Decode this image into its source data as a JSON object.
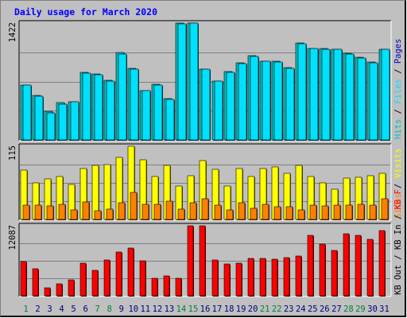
{
  "chart_data": {
    "type": "bar",
    "title": "Daily usage for March 2020",
    "days": [
      "1",
      "2",
      "3",
      "4",
      "5",
      "6",
      "7",
      "8",
      "9",
      "10",
      "11",
      "12",
      "13",
      "14",
      "15",
      "16",
      "17",
      "18",
      "19",
      "20",
      "21",
      "22",
      "23",
      "24",
      "25",
      "26",
      "27",
      "28",
      "29",
      "30",
      "31"
    ],
    "weekend_days": [
      "1",
      "7",
      "8",
      "14",
      "15",
      "21",
      "22",
      "28",
      "29"
    ],
    "panels": [
      {
        "id": "requests",
        "max_label": "1422",
        "ylim": [
          0,
          1422
        ],
        "right_axis": [
          "Pages",
          "/",
          "Files",
          "/",
          "Hits"
        ],
        "series": [
          {
            "name": "Hits",
            "color": "#00c0c0",
            "values": [
              670,
              540,
              350,
              450,
              460,
              820,
              800,
              730,
              1060,
              870,
              600,
              680,
              500,
              1420,
              1420,
              860,
              720,
              830,
              940,
              1030,
              960,
              960,
              880,
              1180,
              1110,
              1110,
              1100,
              1050,
              1010,
              950,
              1100
            ]
          },
          {
            "name": "Files",
            "color": "#00e0ff",
            "values": [
              665,
              530,
              330,
              440,
              460,
              810,
              790,
              720,
              1040,
              865,
              595,
              670,
              490,
              1410,
              1420,
              860,
              715,
              825,
              930,
              1020,
              960,
              950,
              870,
              1170,
              1110,
              1100,
              1100,
              1040,
              1000,
              940,
              1100
            ]
          },
          {
            "name": "Pages",
            "color": "#0000c0",
            "values": [
              0,
              0,
              0,
              0,
              0,
              0,
              0,
              0,
              0,
              0,
              0,
              0,
              0,
              0,
              0,
              0,
              0,
              0,
              0,
              0,
              0,
              0,
              0,
              0,
              0,
              0,
              0,
              0,
              0,
              0,
              0
            ]
          }
        ]
      },
      {
        "id": "visits",
        "max_label": "115",
        "ylim": [
          0,
          115
        ],
        "right_axis": [
          "Visits",
          "/",
          "Sites"
        ],
        "series": [
          {
            "name": "Visits",
            "color": "#ffff00",
            "values": [
              78,
              57,
              64,
              68,
              55,
              80,
              85,
              86,
              97,
              115,
              94,
              68,
              85,
              53,
              69,
              93,
              79,
              52,
              80,
              67,
              80,
              82,
              72,
              85,
              68,
              57,
              48,
              65,
              66,
              69,
              73
            ]
          },
          {
            "name": "Sites",
            "color": "#ff8000",
            "values": [
              22,
              22,
              21,
              24,
              15,
              28,
              14,
              16,
              26,
              42,
              24,
              24,
              29,
              16,
              26,
              33,
              22,
              15,
              26,
              17,
              24,
              20,
              20,
              15,
              23,
              21,
              22,
              23,
              24,
              23,
              32
            ]
          }
        ]
      },
      {
        "id": "kbytes",
        "max_label": "12087",
        "ylim": [
          0,
          12087
        ],
        "right_axis": [
          "KB F",
          "/",
          "KB In",
          "/",
          "KB Out"
        ],
        "series": [
          {
            "name": "KB F",
            "color": "#ff0000",
            "values": [
              5900,
              4700,
              1400,
              2000,
              2800,
              5600,
              4400,
              6200,
              7600,
              8200,
              6000,
              3000,
              3500,
              3000,
              12087,
              12087,
              6200,
              5500,
              5700,
              6400,
              6400,
              6300,
              6600,
              6800,
              10400,
              8900,
              7800,
              10700,
              10400,
              9700,
              11200
            ]
          }
        ]
      }
    ]
  }
}
